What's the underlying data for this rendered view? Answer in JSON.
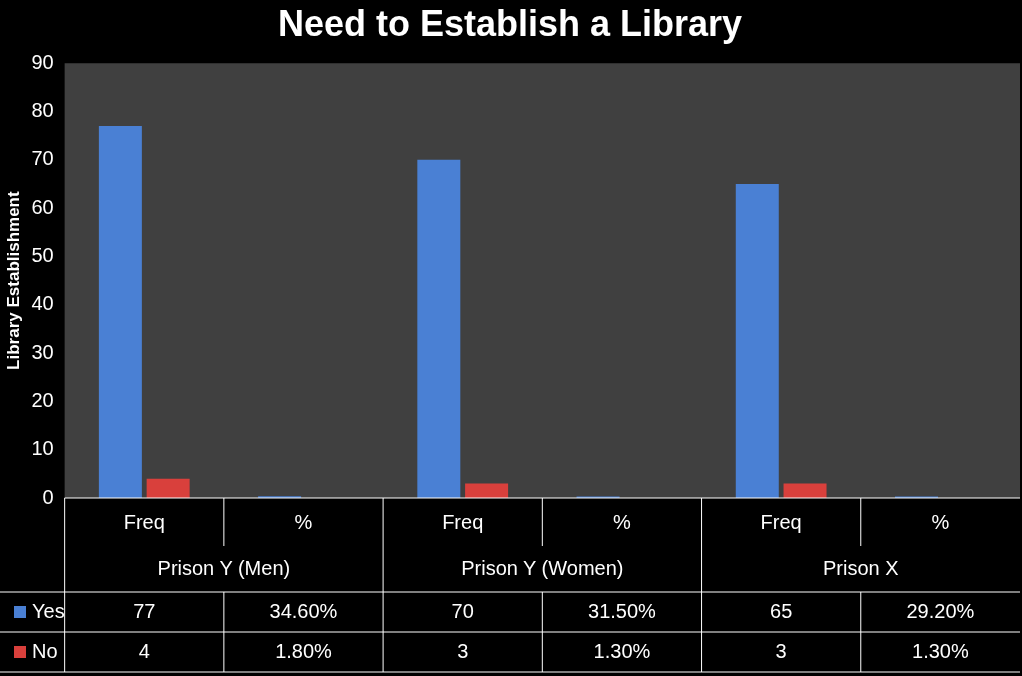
{
  "chart_data": {
    "type": "bar",
    "title": "Need to Establish a Library",
    "ylabel": "Library Establishment",
    "categories": [
      "Freq",
      "%",
      "Freq",
      "%",
      "Freq",
      "%"
    ],
    "annotations": [
      "Prison Y (Men)",
      "Prison Y (Women)",
      "Prison X"
    ],
    "series": [
      {
        "name": "Yes",
        "color": "#4a80d4",
        "values": [
          77,
          0.346,
          70,
          0.315,
          65,
          0.292
        ],
        "value_labels": [
          "77",
          "34.60%",
          "70",
          "31.50%",
          "65",
          "29.20%"
        ]
      },
      {
        "name": "No",
        "color": "#d9403c",
        "values": [
          4,
          0.018,
          3,
          0.013,
          3,
          0.013
        ],
        "value_labels": [
          "4",
          "1.80%",
          "3",
          "1.30%",
          "3",
          "1.30%"
        ]
      }
    ],
    "ylim": [
      0,
      90
    ],
    "yticks": [
      0,
      10,
      20,
      30,
      40,
      50,
      60,
      70,
      80,
      90
    ],
    "grid": false,
    "legend": "bottom"
  }
}
